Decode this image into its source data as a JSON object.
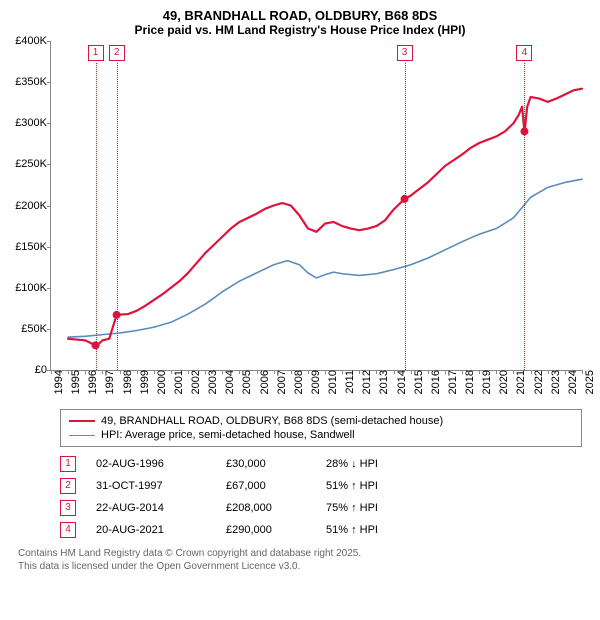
{
  "title": "49, BRANDHALL ROAD, OLDBURY, B68 8DS",
  "subtitle": "Price paid vs. HM Land Registry's House Price Index (HPI)",
  "chart": {
    "type": "line",
    "background_color": "#ffffff",
    "axis_color": "#888888",
    "x_axis": {
      "min": 1994,
      "max": 2025,
      "ticks": [
        1994,
        1995,
        1996,
        1997,
        1998,
        1999,
        2000,
        2001,
        2002,
        2003,
        2004,
        2005,
        2006,
        2007,
        2008,
        2009,
        2010,
        2011,
        2012,
        2013,
        2014,
        2015,
        2016,
        2017,
        2018,
        2019,
        2020,
        2021,
        2022,
        2023,
        2024,
        2025
      ],
      "label_fontsize": 11,
      "label_rotation": -90
    },
    "y_axis": {
      "min": 0,
      "max": 400000,
      "ticks": [
        0,
        50000,
        100000,
        150000,
        200000,
        250000,
        300000,
        350000,
        400000
      ],
      "tick_labels": [
        "£0",
        "£50K",
        "£100K",
        "£150K",
        "£200K",
        "£250K",
        "£300K",
        "£350K",
        "£400K"
      ],
      "label_fontsize": 11
    },
    "series": [
      {
        "name": "49, BRANDHALL ROAD, OLDBURY, B68 8DS (semi-detached house)",
        "color": "#dc143c",
        "line_width": 2.2,
        "sale_marker_radius": 4,
        "points": [
          [
            1995.0,
            38000
          ],
          [
            1995.5,
            37000
          ],
          [
            1996.0,
            36000
          ],
          [
            1996.6,
            30000
          ],
          [
            1996.61,
            30000
          ],
          [
            1996.8,
            32000
          ],
          [
            1997.0,
            36000
          ],
          [
            1997.4,
            38000
          ],
          [
            1997.83,
            67000
          ],
          [
            1997.84,
            67000
          ],
          [
            1998.5,
            68000
          ],
          [
            1999.0,
            72000
          ],
          [
            1999.5,
            78000
          ],
          [
            2000.0,
            85000
          ],
          [
            2000.5,
            92000
          ],
          [
            2001.0,
            100000
          ],
          [
            2001.5,
            108000
          ],
          [
            2002.0,
            118000
          ],
          [
            2002.5,
            130000
          ],
          [
            2003.0,
            142000
          ],
          [
            2003.5,
            152000
          ],
          [
            2004.0,
            162000
          ],
          [
            2004.5,
            172000
          ],
          [
            2005.0,
            180000
          ],
          [
            2005.5,
            185000
          ],
          [
            2006.0,
            190000
          ],
          [
            2006.5,
            196000
          ],
          [
            2007.0,
            200000
          ],
          [
            2007.5,
            203000
          ],
          [
            2008.0,
            200000
          ],
          [
            2008.5,
            188000
          ],
          [
            2009.0,
            172000
          ],
          [
            2009.5,
            168000
          ],
          [
            2010.0,
            178000
          ],
          [
            2010.5,
            180000
          ],
          [
            2011.0,
            175000
          ],
          [
            2011.5,
            172000
          ],
          [
            2012.0,
            170000
          ],
          [
            2012.5,
            172000
          ],
          [
            2013.0,
            175000
          ],
          [
            2013.5,
            182000
          ],
          [
            2014.0,
            195000
          ],
          [
            2014.64,
            208000
          ],
          [
            2014.65,
            208000
          ],
          [
            2015.0,
            212000
          ],
          [
            2015.5,
            220000
          ],
          [
            2016.0,
            228000
          ],
          [
            2016.5,
            238000
          ],
          [
            2017.0,
            248000
          ],
          [
            2017.5,
            255000
          ],
          [
            2018.0,
            262000
          ],
          [
            2018.5,
            270000
          ],
          [
            2019.0,
            276000
          ],
          [
            2019.5,
            280000
          ],
          [
            2020.0,
            284000
          ],
          [
            2020.5,
            290000
          ],
          [
            2021.0,
            300000
          ],
          [
            2021.3,
            310000
          ],
          [
            2021.5,
            320000
          ],
          [
            2021.64,
            290000
          ],
          [
            2021.65,
            290000
          ],
          [
            2021.8,
            320000
          ],
          [
            2022.0,
            332000
          ],
          [
            2022.5,
            330000
          ],
          [
            2023.0,
            326000
          ],
          [
            2023.5,
            330000
          ],
          [
            2024.0,
            335000
          ],
          [
            2024.5,
            340000
          ],
          [
            2025.0,
            342000
          ]
        ],
        "sale_points": [
          [
            1996.6,
            30000
          ],
          [
            1997.83,
            67000
          ],
          [
            2014.64,
            208000
          ],
          [
            2021.64,
            290000
          ]
        ]
      },
      {
        "name": "HPI: Average price, semi-detached house, Sandwell",
        "color": "#5b8bbf",
        "line_width": 1.6,
        "points": [
          [
            1995.0,
            40000
          ],
          [
            1996.0,
            41000
          ],
          [
            1997.0,
            43000
          ],
          [
            1998.0,
            45000
          ],
          [
            1999.0,
            48000
          ],
          [
            2000.0,
            52000
          ],
          [
            2001.0,
            58000
          ],
          [
            2002.0,
            68000
          ],
          [
            2003.0,
            80000
          ],
          [
            2004.0,
            95000
          ],
          [
            2005.0,
            108000
          ],
          [
            2006.0,
            118000
          ],
          [
            2007.0,
            128000
          ],
          [
            2007.8,
            133000
          ],
          [
            2008.5,
            128000
          ],
          [
            2009.0,
            118000
          ],
          [
            2009.5,
            112000
          ],
          [
            2010.0,
            116000
          ],
          [
            2010.5,
            119000
          ],
          [
            2011.0,
            117000
          ],
          [
            2012.0,
            115000
          ],
          [
            2013.0,
            117000
          ],
          [
            2014.0,
            122000
          ],
          [
            2015.0,
            128000
          ],
          [
            2016.0,
            136000
          ],
          [
            2017.0,
            146000
          ],
          [
            2018.0,
            156000
          ],
          [
            2019.0,
            165000
          ],
          [
            2020.0,
            172000
          ],
          [
            2021.0,
            185000
          ],
          [
            2022.0,
            210000
          ],
          [
            2023.0,
            222000
          ],
          [
            2024.0,
            228000
          ],
          [
            2025.0,
            232000
          ]
        ]
      }
    ],
    "markers": [
      {
        "num": "1",
        "x": 1996.6
      },
      {
        "num": "2",
        "x": 1997.83
      },
      {
        "num": "3",
        "x": 2014.64
      },
      {
        "num": "4",
        "x": 2021.64
      }
    ],
    "marker_box_border": "#dc143c",
    "marker_line_style": "dotted"
  },
  "legend": {
    "border_color": "#888888",
    "items": [
      {
        "color": "#dc143c",
        "width": 2.2,
        "label": "49, BRANDHALL ROAD, OLDBURY, B68 8DS (semi-detached house)"
      },
      {
        "color": "#5b8bbf",
        "width": 1.6,
        "label": "HPI: Average price, semi-detached house, Sandwell"
      }
    ]
  },
  "events": [
    {
      "num": "1",
      "date": "02-AUG-1996",
      "price": "£30,000",
      "delta": "28% ↓ HPI"
    },
    {
      "num": "2",
      "date": "31-OCT-1997",
      "price": "£67,000",
      "delta": "51% ↑ HPI"
    },
    {
      "num": "3",
      "date": "22-AUG-2014",
      "price": "£208,000",
      "delta": "75% ↑ HPI"
    },
    {
      "num": "4",
      "date": "20-AUG-2021",
      "price": "£290,000",
      "delta": "51% ↑ HPI"
    }
  ],
  "footer_line1": "Contains HM Land Registry data © Crown copyright and database right 2025.",
  "footer_line2": "This data is licensed under the Open Government Licence v3.0."
}
